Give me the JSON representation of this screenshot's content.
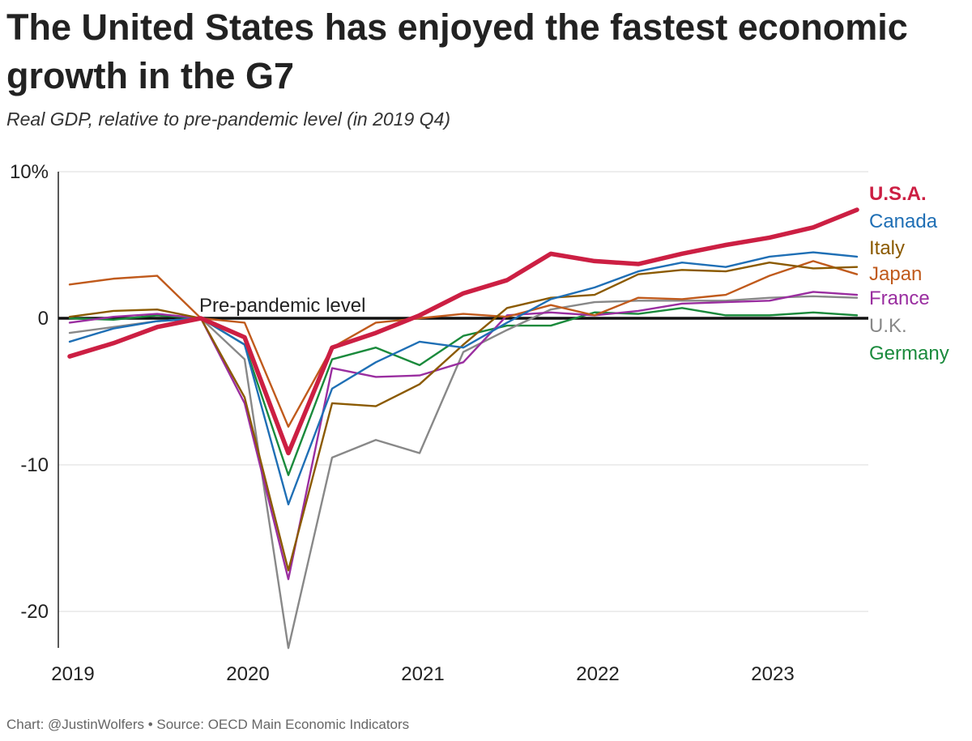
{
  "title": "The United States has enjoyed the fastest economic growth in the G7",
  "subtitle": "Real GDP, relative to pre-pandemic level (in 2019 Q4)",
  "source": "Chart: @JustinWolfers • Source: OECD Main Economic Indicators",
  "chart_data": {
    "type": "line",
    "x": [
      "2019 Q1",
      "2019 Q2",
      "2019 Q3",
      "2019 Q4",
      "2020 Q1",
      "2020 Q2",
      "2020 Q3",
      "2020 Q4",
      "2021 Q1",
      "2021 Q2",
      "2021 Q3",
      "2021 Q4",
      "2022 Q1",
      "2022 Q2",
      "2022 Q3",
      "2022 Q4",
      "2023 Q1",
      "2023 Q2",
      "2023 Q3"
    ],
    "x_tick_labels": [
      "2019",
      "2020",
      "2021",
      "2022",
      "2023"
    ],
    "y_tick_labels": [
      "10%",
      "0",
      "-10",
      "-20"
    ],
    "ylim": [
      -22.5,
      10
    ],
    "reference_line": {
      "value": 0,
      "label": "Pre-pandemic level"
    },
    "legend_placement": "right, at line ends",
    "series": [
      {
        "name": "Germany",
        "color": "#1a8a3c",
        "width": 2.4,
        "values": [
          0,
          -0.1,
          0.2,
          0,
          -1.8,
          -10.7,
          -2.8,
          -2.0,
          -3.2,
          -1.2,
          -0.5,
          -0.5,
          0.4,
          0.3,
          0.7,
          0.2,
          0.2,
          0.4,
          0.2
        ]
      },
      {
        "name": "U.K.",
        "color": "#888888",
        "width": 2.4,
        "values": [
          -1.0,
          -0.6,
          -0.2,
          0,
          -2.8,
          -22.5,
          -9.5,
          -8.3,
          -9.2,
          -2.3,
          -0.8,
          0.6,
          1.1,
          1.2,
          1.2,
          1.2,
          1.4,
          1.5,
          1.4
        ]
      },
      {
        "name": "France",
        "color": "#9a2ea0",
        "width": 2.4,
        "values": [
          -0.3,
          0.1,
          0.3,
          0,
          -5.8,
          -17.8,
          -3.4,
          -4.0,
          -3.9,
          -3.0,
          0.2,
          0.4,
          0.2,
          0.5,
          1.0,
          1.1,
          1.2,
          1.8,
          1.6
        ]
      },
      {
        "name": "Japan",
        "color": "#c05a1c",
        "width": 2.4,
        "values": [
          2.3,
          2.7,
          2.9,
          0,
          -0.3,
          -7.4,
          -2.0,
          -0.3,
          0,
          0.3,
          0.1,
          0.9,
          0.2,
          1.4,
          1.3,
          1.6,
          2.9,
          3.9,
          3.0
        ]
      },
      {
        "name": "Italy",
        "color": "#8b5a00",
        "width": 2.4,
        "values": [
          0.1,
          0.5,
          0.6,
          0,
          -5.4,
          -17.2,
          -5.8,
          -6.0,
          -4.5,
          -1.8,
          0.7,
          1.4,
          1.6,
          3.0,
          3.3,
          3.2,
          3.8,
          3.4,
          3.5
        ]
      },
      {
        "name": "Canada",
        "color": "#1f6fb5",
        "width": 2.4,
        "values": [
          -1.6,
          -0.7,
          -0.2,
          0,
          -1.8,
          -12.7,
          -4.8,
          -3.0,
          -1.6,
          -2.0,
          -0.3,
          1.3,
          2.1,
          3.2,
          3.8,
          3.5,
          4.2,
          4.5,
          4.2
        ]
      },
      {
        "name": "U.S.A.",
        "color": "#cc1f43",
        "width": 5.5,
        "values": [
          -2.6,
          -1.7,
          -0.6,
          0,
          -1.3,
          -9.2,
          -2.0,
          -1.0,
          0.2,
          1.7,
          2.6,
          4.4,
          3.9,
          3.7,
          4.4,
          5.0,
          5.5,
          6.2,
          7.4
        ]
      }
    ]
  }
}
